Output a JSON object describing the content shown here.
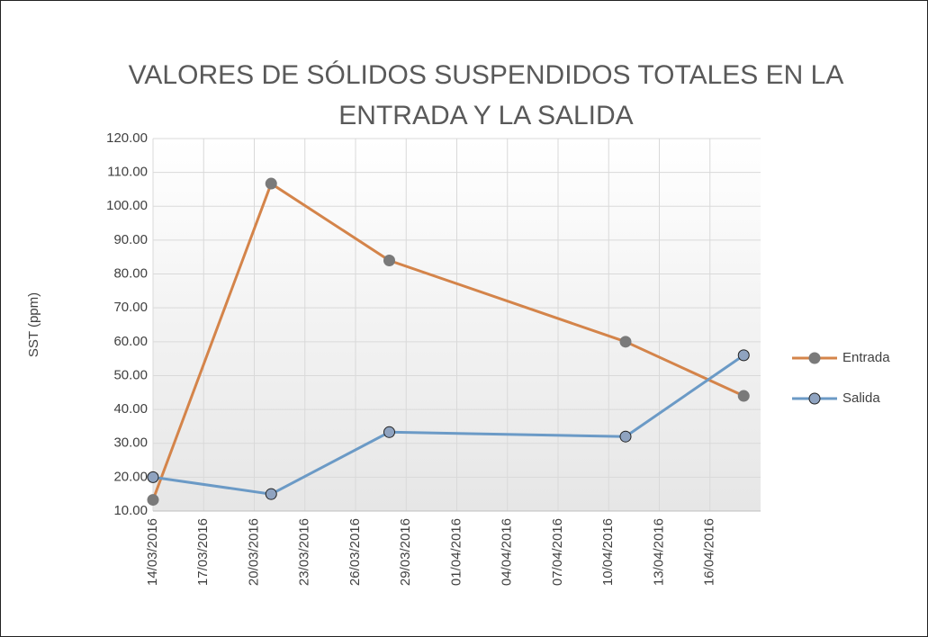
{
  "chart_data": {
    "type": "line",
    "title": [
      "VALORES DE SÓLIDOS SUSPENDIDOS TOTALES EN LA",
      "ENTRADA Y LA SALIDA"
    ],
    "y_label": "SST  (ppm)",
    "x": [
      "2016-03-14",
      "2016-03-21",
      "2016-03-28",
      "2016-04-11",
      "2016-04-18"
    ],
    "series": [
      {
        "name": "Entrada",
        "color": "#d4844a",
        "marker_color": "#7a7a7a",
        "values": [
          13.3,
          106.7,
          84.0,
          60.0,
          44.0
        ]
      },
      {
        "name": "Salida",
        "color": "#6b9ac6",
        "marker_color": "#8fa3c0",
        "values": [
          20.0,
          15.0,
          33.3,
          32.0,
          56.0
        ]
      }
    ],
    "xlim": [
      "2016-03-14",
      "2016-04-19"
    ],
    "xticks": [
      {
        "value": "2016-03-14",
        "label": "14/03/2016"
      },
      {
        "value": "2016-03-17",
        "label": "17/03/2016"
      },
      {
        "value": "2016-03-20",
        "label": "20/03/2016"
      },
      {
        "value": "2016-03-23",
        "label": "23/03/2016"
      },
      {
        "value": "2016-03-26",
        "label": "26/03/2016"
      },
      {
        "value": "2016-03-29",
        "label": "29/03/2016"
      },
      {
        "value": "2016-04-01",
        "label": "01/04/2016"
      },
      {
        "value": "2016-04-04",
        "label": "04/04/2016"
      },
      {
        "value": "2016-04-07",
        "label": "07/04/2016"
      },
      {
        "value": "2016-04-10",
        "label": "10/04/2016"
      },
      {
        "value": "2016-04-13",
        "label": "13/04/2016"
      },
      {
        "value": "2016-04-16",
        "label": "16/04/2016"
      }
    ],
    "ylim": [
      10,
      120
    ],
    "yticks": [
      {
        "value": 10,
        "label": "10.00"
      },
      {
        "value": 20,
        "label": "20.00"
      },
      {
        "value": 30,
        "label": "30.00"
      },
      {
        "value": 40,
        "label": "40.00"
      },
      {
        "value": 50,
        "label": "50.00"
      },
      {
        "value": 60,
        "label": "60.00"
      },
      {
        "value": 70,
        "label": "70.00"
      },
      {
        "value": 80,
        "label": "80.00"
      },
      {
        "value": 90,
        "label": "90.00"
      },
      {
        "value": 100,
        "label": "100.00"
      },
      {
        "value": 110,
        "label": "110.00"
      },
      {
        "value": 120,
        "label": "120.00"
      }
    ],
    "grid": true,
    "legend": "right"
  }
}
